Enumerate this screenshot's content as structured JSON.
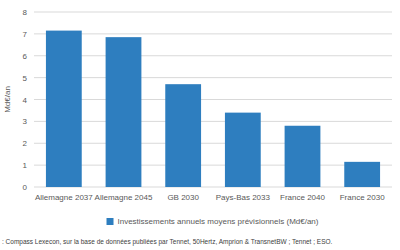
{
  "chart_data": {
    "type": "bar",
    "y_label": "Md€/an",
    "categories": [
      "Allemagne 2037",
      "Allemagne 2045",
      "GB 2030",
      "Pays-Bas 2033",
      "France 2040",
      "France 2030"
    ],
    "series": [
      {
        "name": "Investissements annuels moyens prévisionnels (Md€/an)",
        "color": "#2e7ebf",
        "values": [
          7.15,
          6.85,
          4.7,
          3.4,
          2.8,
          1.15
        ]
      }
    ],
    "ylim": [
      0,
      8
    ],
    "yticks": [
      0,
      1,
      2,
      3,
      4,
      5,
      6,
      7,
      8
    ],
    "grid": true,
    "legend": "bottom",
    "annotations": [
      ": Compass Lexecon, sur la base de données publiées par Tennet, 50Hertz, Amprion & TransnetBW ; Tennet ; ESO."
    ]
  }
}
